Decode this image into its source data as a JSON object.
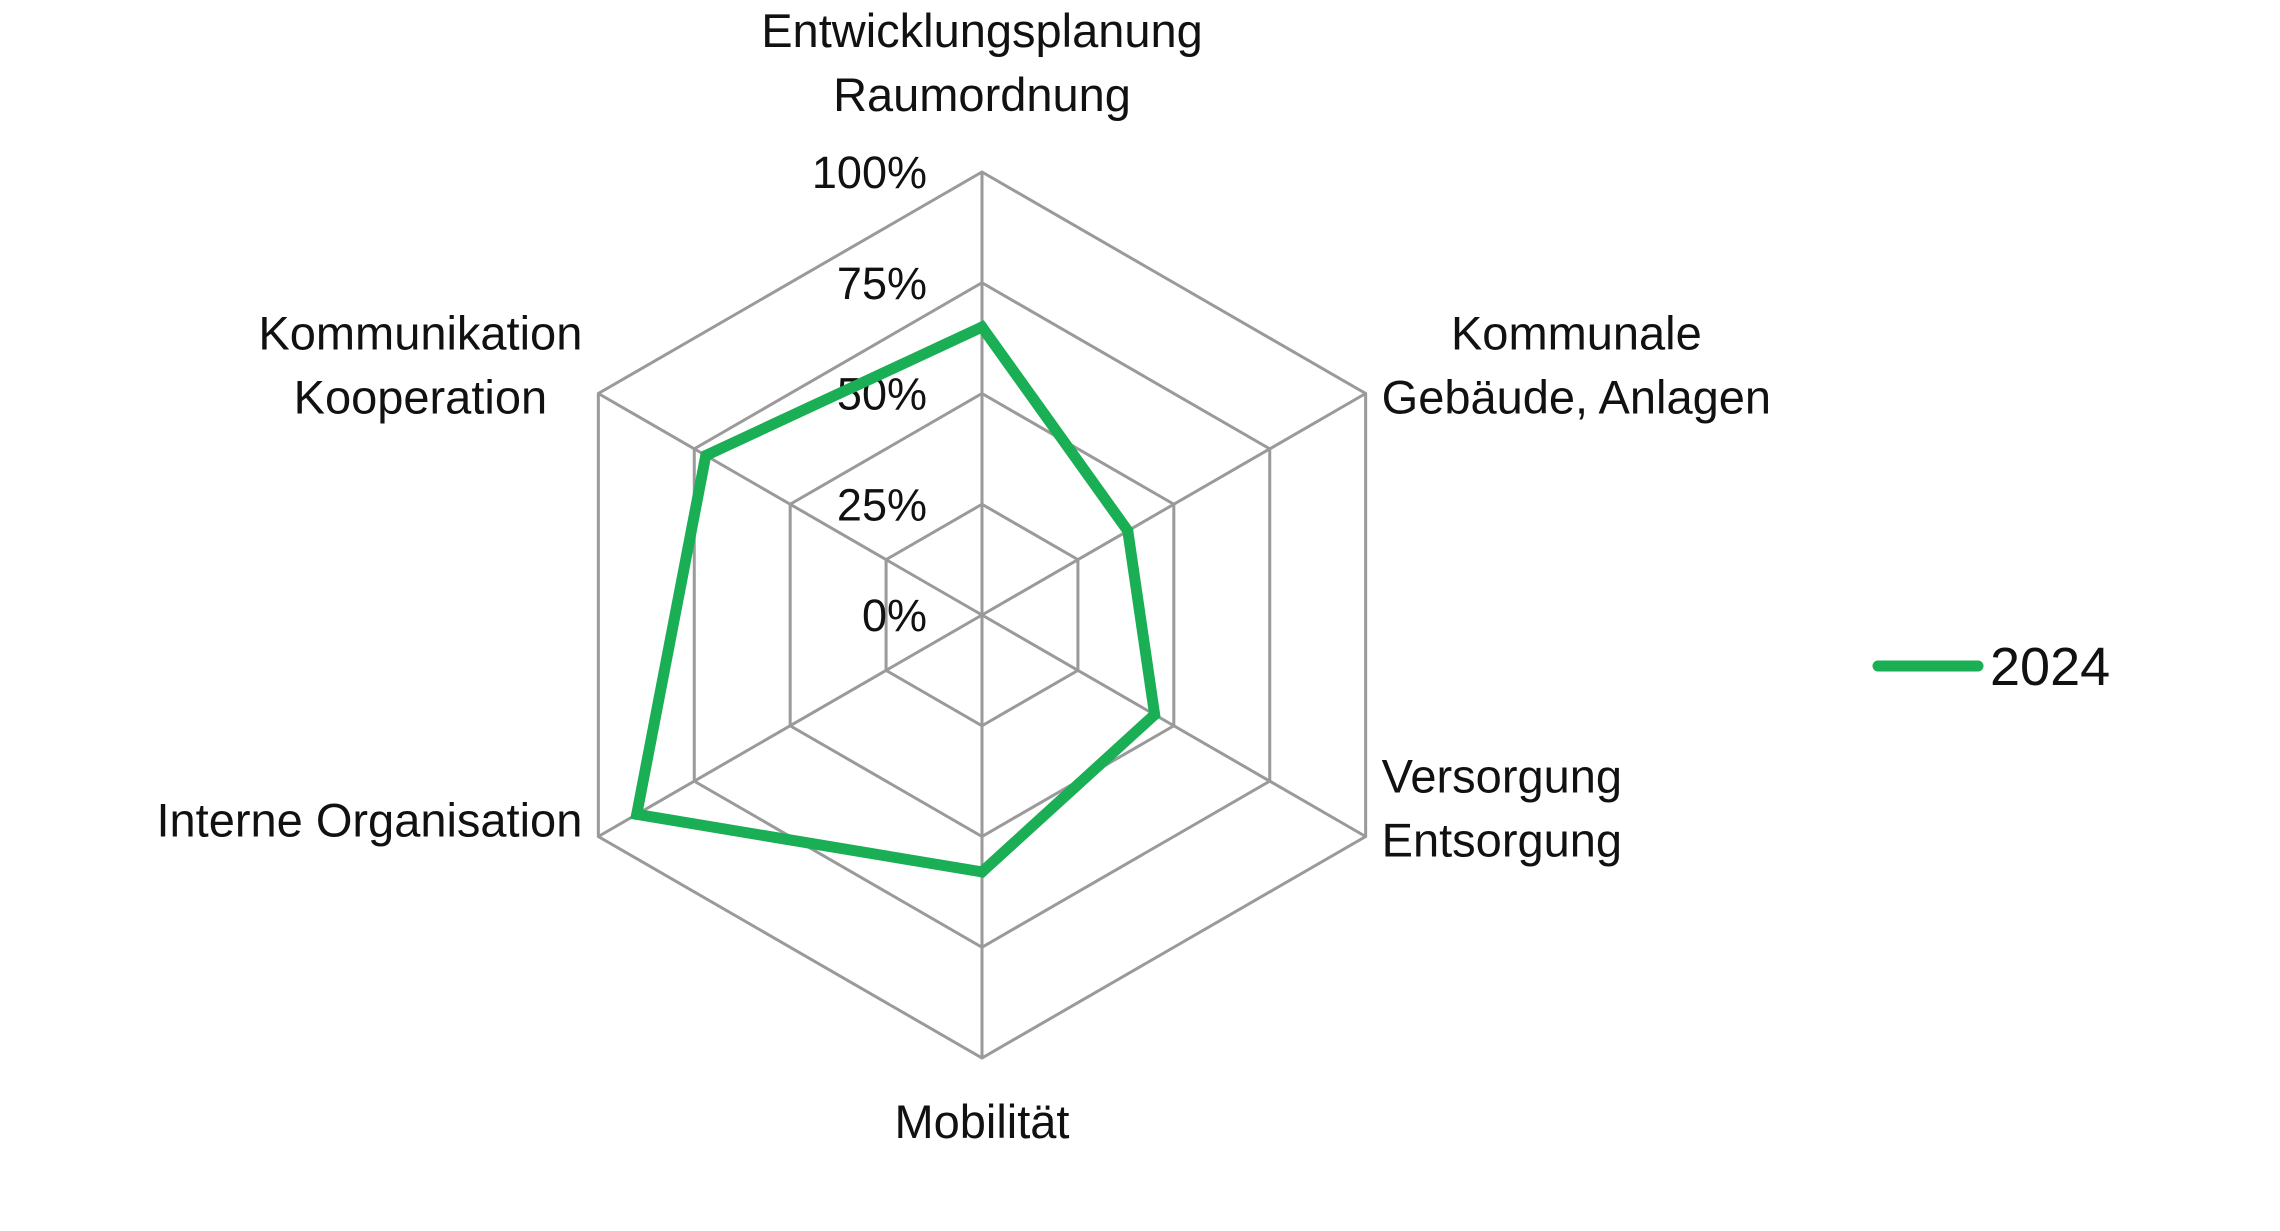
{
  "chart_data": {
    "type": "radar",
    "title": "",
    "categories": [
      [
        "Entwicklungsplanung",
        "Raumordnung"
      ],
      [
        "Kommunale",
        "Gebäude, Anlagen"
      ],
      [
        "Versorgung",
        "Entsorgung"
      ],
      [
        "Mobilität"
      ],
      [
        "Interne Organisation"
      ],
      [
        "Kommunikation",
        "Kooperation"
      ]
    ],
    "axis_ticks": [
      "0%",
      "25%",
      "50%",
      "75%",
      "100%"
    ],
    "ylim": [
      0,
      100
    ],
    "grid": true,
    "legend_position": "right",
    "series": [
      {
        "name": "2024",
        "color": "#1aaf54",
        "values": [
          65,
          38,
          45,
          58,
          90,
          72
        ]
      }
    ]
  }
}
